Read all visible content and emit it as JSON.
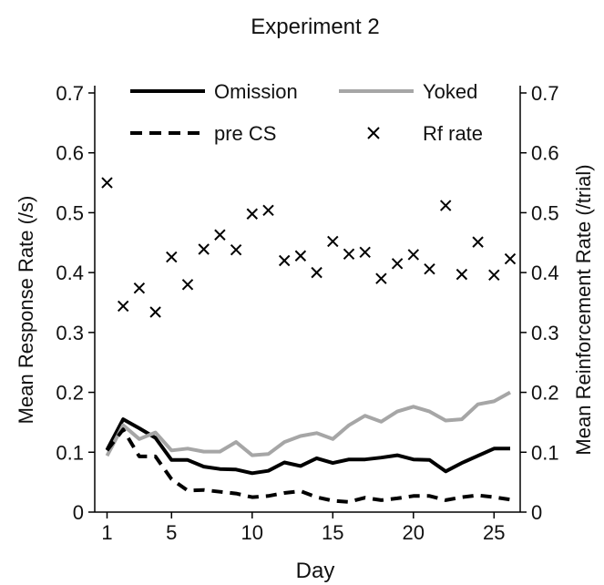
{
  "chart_data": {
    "type": "line",
    "title": "Experiment 2",
    "xlabel": "Day",
    "ylabel": "Mean Response Rate (/s)",
    "y2label": "Mean Reinforcement Rate (/trial)",
    "xlim": [
      1,
      26
    ],
    "ylim": [
      0,
      0.7
    ],
    "y2lim": [
      0,
      0.7
    ],
    "xticks": [
      1,
      5,
      10,
      15,
      20,
      25
    ],
    "yticks": [
      0,
      0.1,
      0.2,
      0.3,
      0.4,
      0.5,
      0.6,
      0.7
    ],
    "ytick_labels": [
      "0",
      "0.1",
      "0.2",
      "0.3",
      "0.4",
      "0.5",
      "0.6",
      "0.7"
    ],
    "y2tick_labels": [
      "0",
      "0.1",
      "0.2",
      "0.3",
      "0.4",
      "0.5",
      "0.6",
      "0.7"
    ],
    "grid": false,
    "legend_position": "top",
    "x": [
      1,
      2,
      3,
      4,
      5,
      6,
      7,
      8,
      9,
      10,
      11,
      12,
      13,
      14,
      15,
      16,
      17,
      18,
      19,
      20,
      21,
      22,
      23,
      24,
      25,
      26
    ],
    "series": [
      {
        "name": "Omission",
        "style": "solid",
        "color": "#000000",
        "values": [
          0.104,
          0.155,
          0.14,
          0.124,
          0.087,
          0.087,
          0.076,
          0.072,
          0.071,
          0.065,
          0.069,
          0.083,
          0.077,
          0.09,
          0.082,
          0.088,
          0.088,
          0.091,
          0.095,
          0.088,
          0.087,
          0.068,
          0.082,
          0.094,
          0.106,
          0.106
        ]
      },
      {
        "name": "Yoked",
        "style": "solid",
        "color": "#a6a6a6",
        "values": [
          0.094,
          0.145,
          0.122,
          0.133,
          0.103,
          0.106,
          0.101,
          0.101,
          0.117,
          0.095,
          0.097,
          0.117,
          0.127,
          0.132,
          0.122,
          0.145,
          0.161,
          0.151,
          0.168,
          0.176,
          0.168,
          0.153,
          0.155,
          0.18,
          0.185,
          0.2
        ]
      },
      {
        "name": "pre CS",
        "style": "dashed",
        "color": "#000000",
        "values": [
          0.103,
          0.138,
          0.093,
          0.093,
          0.055,
          0.036,
          0.037,
          0.034,
          0.031,
          0.025,
          0.027,
          0.032,
          0.035,
          0.025,
          0.019,
          0.017,
          0.024,
          0.02,
          0.023,
          0.027,
          0.027,
          0.02,
          0.025,
          0.028,
          0.025,
          0.021
        ]
      },
      {
        "name": "Rf rate",
        "style": "marker-x",
        "axis": "right",
        "color": "#000000",
        "values": [
          0.55,
          0.344,
          0.374,
          0.334,
          0.426,
          0.38,
          0.439,
          0.463,
          0.438,
          0.498,
          0.504,
          0.42,
          0.428,
          0.4,
          0.452,
          0.431,
          0.434,
          0.39,
          0.415,
          0.43,
          0.406,
          0.512,
          0.397,
          0.451,
          0.396,
          0.423
        ]
      }
    ]
  }
}
